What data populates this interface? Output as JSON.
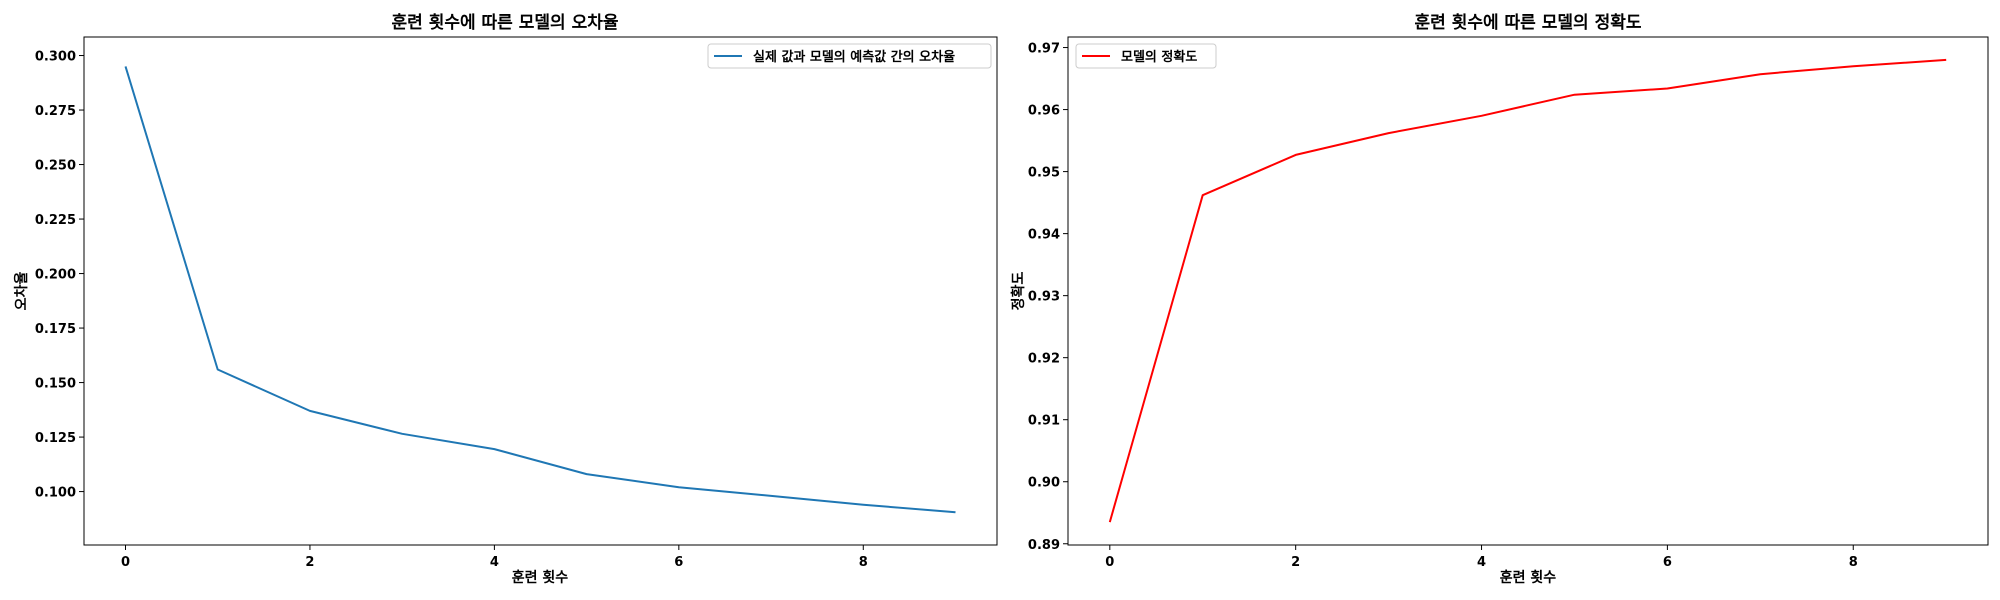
{
  "chart_data": [
    {
      "type": "line",
      "title": "훈련 횟수에 따른 모델의 오차율",
      "xlabel": "훈련 횟수",
      "ylabel": "오차율",
      "x": [
        0,
        1,
        2,
        3,
        4,
        5,
        6,
        7,
        8,
        9
      ],
      "xlim": [
        -0.45,
        9.45
      ],
      "ylim": [
        0.0755,
        0.3085
      ],
      "xticks": [
        0,
        2,
        4,
        6,
        8
      ],
      "xtick_labels": [
        "0",
        "2",
        "4",
        "6",
        "8"
      ],
      "yticks": [
        0.1,
        0.125,
        0.15,
        0.175,
        0.2,
        0.225,
        0.25,
        0.275,
        0.3
      ],
      "ytick_labels": [
        "0.100",
        "0.125",
        "0.150",
        "0.175",
        "0.200",
        "0.225",
        "0.250",
        "0.275",
        "0.300"
      ],
      "grid": false,
      "legend_position": "top-right",
      "series": [
        {
          "name": "실제 값과 모델의 예측값 간의 오차율",
          "color": "#1f77b4",
          "values": [
            0.295,
            0.156,
            0.137,
            0.1265,
            0.1195,
            0.108,
            0.102,
            0.098,
            0.094,
            0.0905
          ]
        }
      ]
    },
    {
      "type": "line",
      "title": "훈련 횟수에 따른 모델의 정확도",
      "xlabel": "훈련 횟수",
      "ylabel": "정확도",
      "x": [
        0,
        1,
        2,
        3,
        4,
        5,
        6,
        7,
        8,
        9
      ],
      "xlim": [
        -0.45,
        9.45
      ],
      "ylim": [
        0.8898,
        0.9717
      ],
      "xticks": [
        0,
        2,
        4,
        6,
        8
      ],
      "xtick_labels": [
        "0",
        "2",
        "4",
        "6",
        "8"
      ],
      "yticks": [
        0.89,
        0.9,
        0.91,
        0.92,
        0.93,
        0.94,
        0.95,
        0.96,
        0.97
      ],
      "ytick_labels": [
        "0.89",
        "0.90",
        "0.91",
        "0.92",
        "0.93",
        "0.94",
        "0.95",
        "0.96",
        "0.97"
      ],
      "grid": false,
      "legend_position": "top-left",
      "series": [
        {
          "name": "모델의 정확도",
          "color": "#ff0000",
          "values": [
            0.8935,
            0.9462,
            0.9527,
            0.9562,
            0.959,
            0.9624,
            0.9634,
            0.9657,
            0.967,
            0.968
          ]
        }
      ]
    }
  ]
}
